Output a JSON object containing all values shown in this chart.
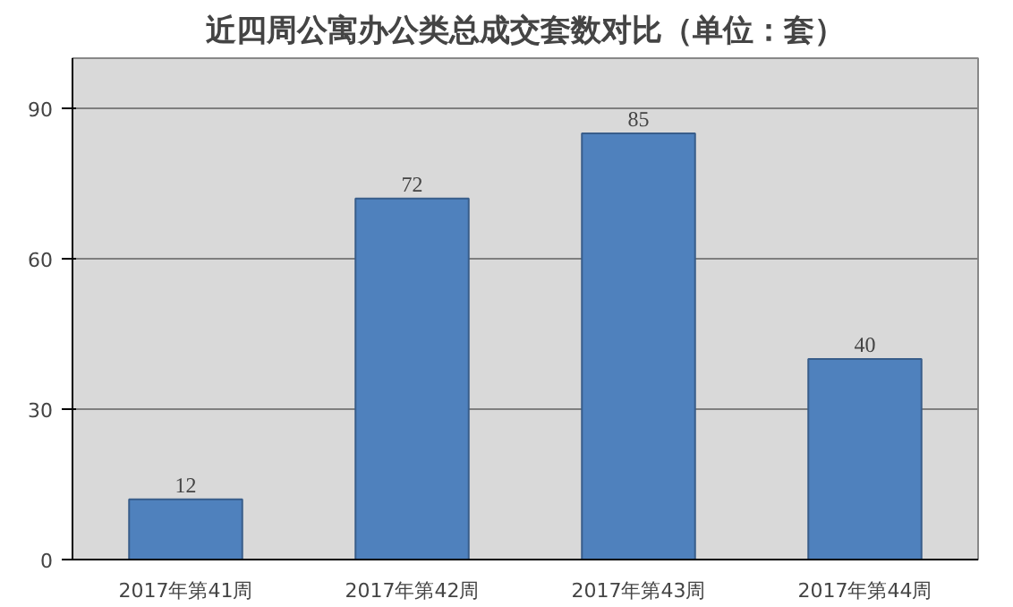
{
  "chart_data": {
    "type": "bar",
    "title": "近四周公寓办公类总成交套数对比（单位：套）",
    "categories": [
      "2017年第41周",
      "2017年第42周",
      "2017年第43周",
      "2017年第44周"
    ],
    "values": [
      12,
      72,
      85,
      40
    ],
    "color": "#4f81bd",
    "ylim": [
      0,
      100
    ],
    "yticks": [
      0,
      30,
      60,
      90
    ],
    "grid": "y",
    "data_labels": true
  }
}
